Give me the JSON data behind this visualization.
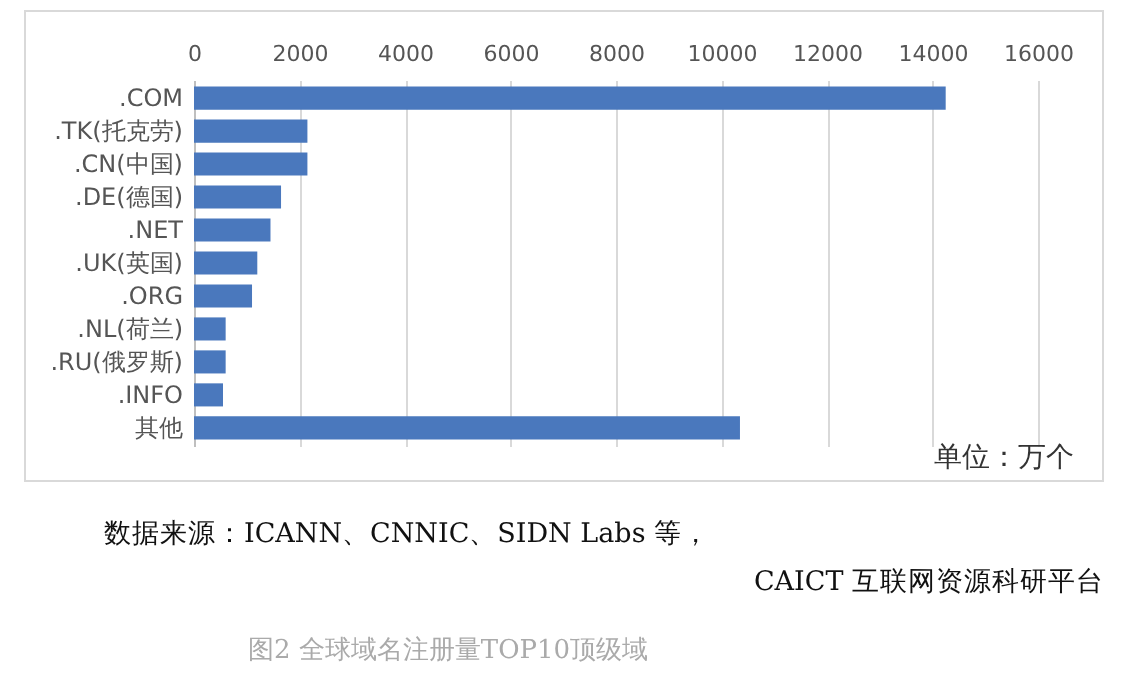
{
  "chart_data": {
    "type": "bar",
    "orientation": "horizontal",
    "categories": [
      ".COM",
      ".TK(托克劳)",
      ".CN(中国)",
      ".DE(德国)",
      ".NET",
      ".UK(英国)",
      ".ORG",
      ".NL(荷兰)",
      ".RU(俄罗斯)",
      ".INFO",
      "其他"
    ],
    "values": [
      14250,
      2150,
      2150,
      1650,
      1450,
      1200,
      1100,
      600,
      600,
      550,
      10350
    ],
    "color": "#4a78bd",
    "xlim": [
      0,
      16000
    ],
    "xticks": [
      0,
      2000,
      4000,
      6000,
      8000,
      10000,
      12000,
      14000,
      16000
    ],
    "grid": "x",
    "annotations": [
      "单位：万个",
      "数据来源：ICANN、CNNIC、SIDN Labs 等，",
      "CAICT 互联网资源科研平台",
      "图2 全球域名注册量TOP10顶级域"
    ]
  }
}
